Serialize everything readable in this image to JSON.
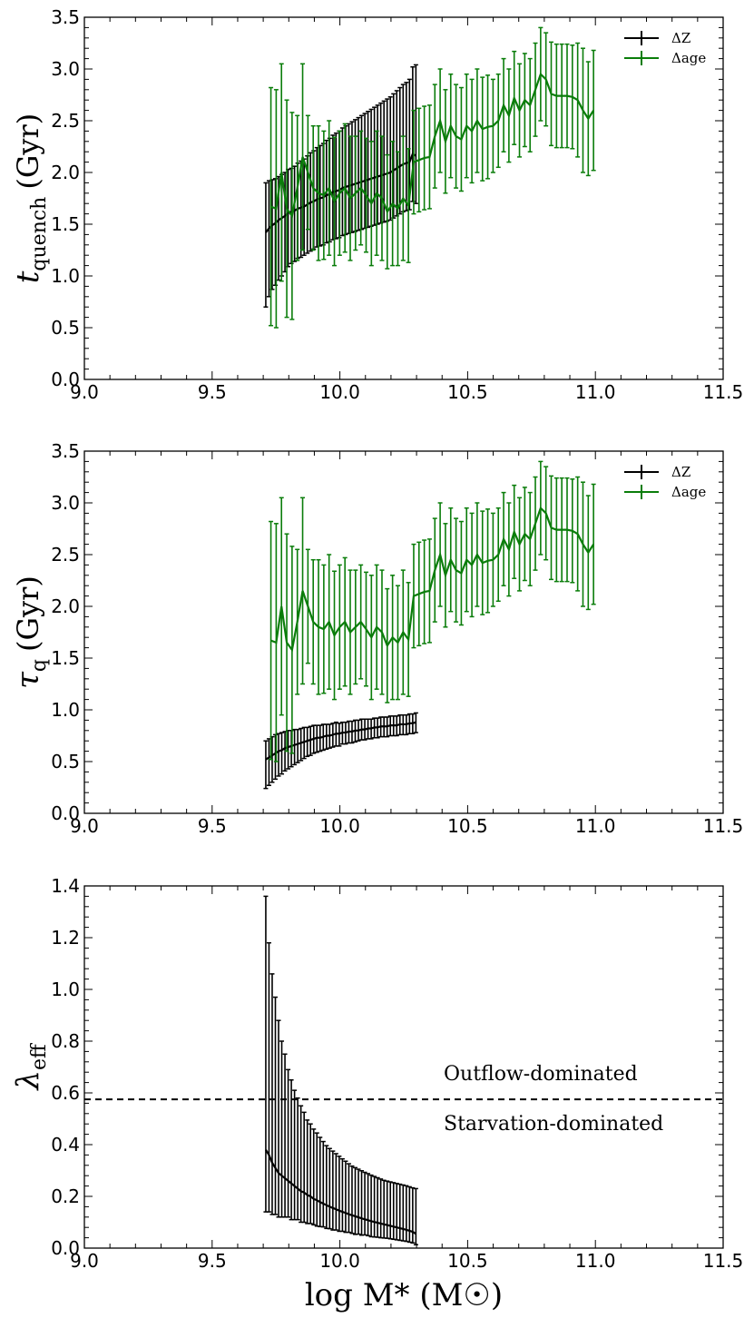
{
  "colors": {
    "black": "#000000",
    "green": "#0a7d0a"
  },
  "chart_data": [
    {
      "type": "line",
      "ylabel_main": "t",
      "ylabel_sub": "quench",
      "ylabel_unit": "(Gyr)",
      "xlim": [
        9.0,
        11.5
      ],
      "ylim": [
        0.0,
        3.5
      ],
      "xticks": [
        "9.0",
        "9.5",
        "10.0",
        "10.5",
        "11.0",
        "11.5"
      ],
      "yticks": [
        "0.0",
        "0.5",
        "1.0",
        "1.5",
        "2.0",
        "2.5",
        "3.0",
        "3.5"
      ],
      "legend_position": "top-right",
      "series": [
        {
          "name": "ΔZ",
          "color": "black",
          "x_start": 9.71,
          "x_step": 0.0125,
          "y": [
            1.42,
            1.46,
            1.49,
            1.51,
            1.54,
            1.56,
            1.58,
            1.61,
            1.62,
            1.63,
            1.65,
            1.66,
            1.67,
            1.69,
            1.71,
            1.72,
            1.74,
            1.75,
            1.76,
            1.78,
            1.79,
            1.81,
            1.82,
            1.83,
            1.85,
            1.86,
            1.87,
            1.88,
            1.89,
            1.9,
            1.91,
            1.92,
            1.93,
            1.94,
            1.95,
            1.96,
            1.97,
            1.98,
            1.99,
            2.0,
            2.02,
            2.04,
            2.06,
            2.08,
            2.09,
            2.1,
            2.18,
            2.16
          ],
          "err_lo": [
            0.72,
            0.66,
            0.62,
            0.6,
            0.58,
            0.56,
            0.54,
            0.52,
            0.5,
            0.49,
            0.48,
            0.48,
            0.47,
            0.47,
            0.47,
            0.46,
            0.46,
            0.46,
            0.46,
            0.46,
            0.46,
            0.46,
            0.46,
            0.46,
            0.46,
            0.46,
            0.46,
            0.46,
            0.46,
            0.46,
            0.46,
            0.46,
            0.46,
            0.46,
            0.46,
            0.46,
            0.46,
            0.46,
            0.46,
            0.46,
            0.46,
            0.46,
            0.46,
            0.46,
            0.46,
            0.46,
            0.46,
            0.46
          ],
          "err_hi": [
            0.48,
            0.46,
            0.44,
            0.43,
            0.42,
            0.42,
            0.42,
            0.42,
            0.42,
            0.43,
            0.44,
            0.45,
            0.46,
            0.47,
            0.48,
            0.49,
            0.5,
            0.51,
            0.52,
            0.53,
            0.54,
            0.55,
            0.56,
            0.57,
            0.58,
            0.59,
            0.6,
            0.61,
            0.62,
            0.63,
            0.64,
            0.65,
            0.66,
            0.67,
            0.68,
            0.69,
            0.7,
            0.71,
            0.72,
            0.73,
            0.74,
            0.75,
            0.76,
            0.77,
            0.78,
            0.8,
            0.84,
            0.88
          ]
        },
        {
          "name": "Δage",
          "color": "green",
          "x_start": 9.73,
          "x_step": 0.0207,
          "y": [
            1.67,
            1.65,
            2.0,
            1.65,
            1.58,
            1.85,
            2.15,
            2.0,
            1.85,
            1.8,
            1.78,
            1.85,
            1.72,
            1.8,
            1.85,
            1.75,
            1.8,
            1.85,
            1.78,
            1.7,
            1.8,
            1.75,
            1.62,
            1.7,
            1.65,
            1.75,
            1.68,
            2.1,
            2.12,
            2.14,
            2.15,
            2.35,
            2.5,
            2.3,
            2.45,
            2.35,
            2.32,
            2.45,
            2.4,
            2.5,
            2.42,
            2.44,
            2.45,
            2.5,
            2.65,
            2.55,
            2.72,
            2.6,
            2.7,
            2.65,
            2.8,
            2.95,
            2.9,
            2.76,
            2.74,
            2.74,
            2.74,
            2.73,
            2.7,
            2.6,
            2.52,
            2.6
          ],
          "err": [
            1.15,
            1.15,
            1.05,
            1.05,
            1.0,
            0.7,
            0.9,
            0.55,
            0.6,
            0.65,
            0.62,
            0.65,
            0.62,
            0.6,
            0.62,
            0.6,
            0.55,
            0.55,
            0.55,
            0.6,
            0.6,
            0.6,
            0.55,
            0.6,
            0.55,
            0.6,
            0.55,
            0.5,
            0.5,
            0.5,
            0.5,
            0.5,
            0.5,
            0.5,
            0.5,
            0.5,
            0.5,
            0.5,
            0.5,
            0.5,
            0.5,
            0.5,
            0.45,
            0.45,
            0.45,
            0.45,
            0.45,
            0.45,
            0.45,
            0.45,
            0.45,
            0.45,
            0.45,
            0.5,
            0.5,
            0.5,
            0.5,
            0.5,
            0.55,
            0.6,
            0.55,
            0.58
          ]
        }
      ]
    },
    {
      "type": "line",
      "ylabel_main": "τ",
      "ylabel_sub": "q",
      "ylabel_unit": "(Gyr)",
      "xlim": [
        9.0,
        11.5
      ],
      "ylim": [
        0.0,
        3.5
      ],
      "xticks": [
        "9.0",
        "9.5",
        "10.0",
        "10.5",
        "11.0",
        "11.5"
      ],
      "yticks": [
        "0.0",
        "0.5",
        "1.0",
        "1.5",
        "2.0",
        "2.5",
        "3.0",
        "3.5"
      ],
      "legend_position": "top-right",
      "series": [
        {
          "name": "ΔZ",
          "color": "black",
          "x_start": 9.71,
          "x_step": 0.0125,
          "y": [
            0.52,
            0.54,
            0.56,
            0.58,
            0.6,
            0.61,
            0.63,
            0.64,
            0.65,
            0.66,
            0.67,
            0.68,
            0.69,
            0.7,
            0.71,
            0.72,
            0.73,
            0.73,
            0.74,
            0.75,
            0.75,
            0.76,
            0.77,
            0.77,
            0.78,
            0.78,
            0.79,
            0.79,
            0.8,
            0.8,
            0.81,
            0.81,
            0.82,
            0.82,
            0.83,
            0.83,
            0.84,
            0.84,
            0.84,
            0.85,
            0.85,
            0.85,
            0.86,
            0.86,
            0.86,
            0.87,
            0.87,
            0.88
          ],
          "err_lo": [
            0.28,
            0.27,
            0.26,
            0.25,
            0.24,
            0.23,
            0.22,
            0.21,
            0.2,
            0.19,
            0.18,
            0.17,
            0.16,
            0.15,
            0.15,
            0.14,
            0.14,
            0.13,
            0.13,
            0.13,
            0.12,
            0.12,
            0.12,
            0.12,
            0.11,
            0.11,
            0.11,
            0.11,
            0.11,
            0.1,
            0.1,
            0.1,
            0.1,
            0.1,
            0.1,
            0.1,
            0.1,
            0.1,
            0.1,
            0.1,
            0.1,
            0.1,
            0.1,
            0.1,
            0.1,
            0.1,
            0.1,
            0.1
          ],
          "err_hi": [
            0.18,
            0.18,
            0.18,
            0.18,
            0.17,
            0.17,
            0.16,
            0.16,
            0.15,
            0.15,
            0.14,
            0.14,
            0.14,
            0.13,
            0.13,
            0.13,
            0.12,
            0.12,
            0.12,
            0.11,
            0.11,
            0.11,
            0.11,
            0.1,
            0.1,
            0.1,
            0.1,
            0.1,
            0.1,
            0.1,
            0.1,
            0.1,
            0.09,
            0.09,
            0.09,
            0.09,
            0.09,
            0.09,
            0.09,
            0.09,
            0.09,
            0.09,
            0.09,
            0.09,
            0.09,
            0.09,
            0.09,
            0.09
          ]
        },
        {
          "name": "Δage",
          "color": "green",
          "x_start": 9.73,
          "x_step": 0.0207,
          "y": [
            1.67,
            1.65,
            2.0,
            1.65,
            1.58,
            1.85,
            2.15,
            2.0,
            1.85,
            1.8,
            1.78,
            1.85,
            1.72,
            1.8,
            1.85,
            1.75,
            1.8,
            1.85,
            1.78,
            1.7,
            1.8,
            1.75,
            1.62,
            1.7,
            1.65,
            1.75,
            1.68,
            2.1,
            2.12,
            2.14,
            2.15,
            2.35,
            2.5,
            2.3,
            2.45,
            2.35,
            2.32,
            2.45,
            2.4,
            2.5,
            2.42,
            2.44,
            2.45,
            2.5,
            2.65,
            2.55,
            2.72,
            2.6,
            2.7,
            2.65,
            2.8,
            2.95,
            2.9,
            2.76,
            2.74,
            2.74,
            2.74,
            2.73,
            2.7,
            2.6,
            2.52,
            2.6
          ],
          "err": [
            1.15,
            1.15,
            1.05,
            1.05,
            1.0,
            0.7,
            0.9,
            0.55,
            0.6,
            0.65,
            0.62,
            0.65,
            0.62,
            0.6,
            0.62,
            0.6,
            0.55,
            0.55,
            0.55,
            0.6,
            0.6,
            0.6,
            0.55,
            0.6,
            0.55,
            0.6,
            0.55,
            0.5,
            0.5,
            0.5,
            0.5,
            0.5,
            0.5,
            0.5,
            0.5,
            0.5,
            0.5,
            0.5,
            0.5,
            0.5,
            0.5,
            0.5,
            0.45,
            0.45,
            0.45,
            0.45,
            0.45,
            0.45,
            0.45,
            0.45,
            0.45,
            0.45,
            0.45,
            0.5,
            0.5,
            0.5,
            0.5,
            0.5,
            0.55,
            0.6,
            0.55,
            0.58
          ]
        }
      ]
    },
    {
      "type": "line",
      "ylabel_main": "λ",
      "ylabel_sub": "eff",
      "ylabel_unit": "",
      "xlabel": "log M* (M☉)",
      "xlim": [
        9.0,
        11.5
      ],
      "ylim": [
        0.0,
        1.4
      ],
      "xticks": [
        "9.0",
        "9.5",
        "10.0",
        "10.5",
        "11.0",
        "11.5"
      ],
      "yticks": [
        "0.0",
        "0.2",
        "0.4",
        "0.6",
        "0.8",
        "1.0",
        "1.2",
        "1.4"
      ],
      "hline": 0.575,
      "annotations": {
        "above": "Outflow-dominated",
        "below": "Starvation-dominated"
      },
      "series": [
        {
          "name": "",
          "color": "black",
          "x_start": 9.71,
          "x_step": 0.0125,
          "y": [
            0.38,
            0.36,
            0.33,
            0.31,
            0.29,
            0.28,
            0.27,
            0.26,
            0.25,
            0.24,
            0.23,
            0.22,
            0.215,
            0.205,
            0.2,
            0.19,
            0.185,
            0.178,
            0.172,
            0.166,
            0.16,
            0.155,
            0.15,
            0.145,
            0.14,
            0.136,
            0.131,
            0.127,
            0.123,
            0.119,
            0.115,
            0.111,
            0.108,
            0.104,
            0.101,
            0.098,
            0.095,
            0.092,
            0.089,
            0.086,
            0.083,
            0.08,
            0.077,
            0.074,
            0.071,
            0.067,
            0.063,
            0.055
          ],
          "err_lo": [
            0.24,
            0.22,
            0.2,
            0.18,
            0.17,
            0.16,
            0.15,
            0.14,
            0.14,
            0.13,
            0.12,
            0.12,
            0.115,
            0.11,
            0.105,
            0.1,
            0.1,
            0.095,
            0.09,
            0.09,
            0.085,
            0.085,
            0.08,
            0.08,
            0.075,
            0.075,
            0.07,
            0.07,
            0.07,
            0.065,
            0.065,
            0.06,
            0.06,
            0.06,
            0.058,
            0.056,
            0.055,
            0.053,
            0.051,
            0.05,
            0.049,
            0.048,
            0.047,
            0.046,
            0.045,
            0.044,
            0.043,
            0.042
          ],
          "err_hi": [
            0.98,
            0.82,
            0.73,
            0.66,
            0.59,
            0.52,
            0.48,
            0.43,
            0.4,
            0.37,
            0.35,
            0.33,
            0.31,
            0.29,
            0.28,
            0.27,
            0.26,
            0.25,
            0.24,
            0.23,
            0.225,
            0.22,
            0.215,
            0.21,
            0.205,
            0.2,
            0.195,
            0.19,
            0.188,
            0.186,
            0.184,
            0.182,
            0.18,
            0.178,
            0.176,
            0.174,
            0.172,
            0.17,
            0.17,
            0.17,
            0.17,
            0.17,
            0.17,
            0.17,
            0.17,
            0.17,
            0.17,
            0.175
          ]
        }
      ]
    }
  ]
}
